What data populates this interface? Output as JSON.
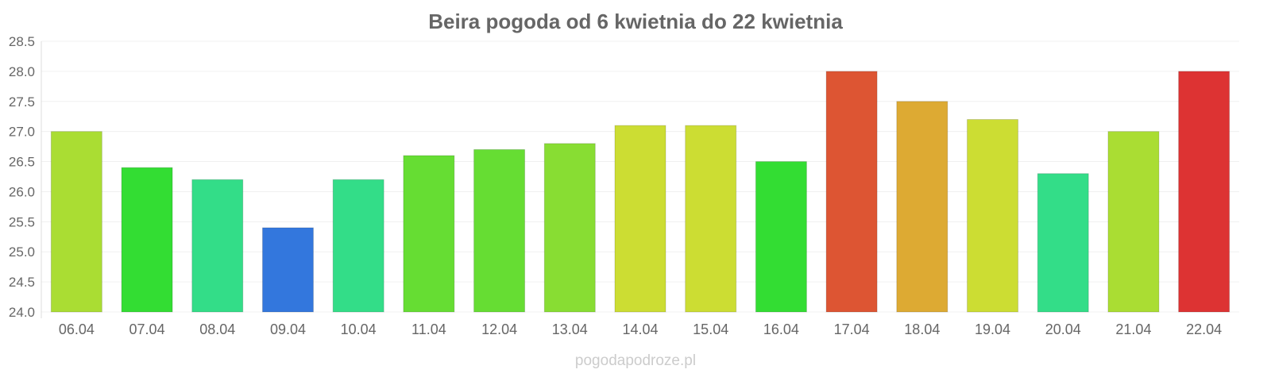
{
  "chart_data": {
    "type": "bar",
    "title": "Beira pogoda od 6 kwietnia do 22 kwietnia",
    "categories": [
      "06.04",
      "07.04",
      "08.04",
      "09.04",
      "10.04",
      "11.04",
      "12.04",
      "13.04",
      "14.04",
      "15.04",
      "16.04",
      "17.04",
      "18.04",
      "19.04",
      "20.04",
      "21.04",
      "22.04"
    ],
    "values": [
      27.0,
      26.4,
      26.2,
      25.4,
      26.2,
      26.6,
      26.7,
      26.8,
      27.1,
      27.1,
      26.5,
      28.0,
      27.5,
      27.2,
      26.3,
      27.0,
      28.0
    ],
    "colors": [
      "#aadd33",
      "#33dd33",
      "#33dd88",
      "#3377dd",
      "#33dd88",
      "#66dd33",
      "#66dd33",
      "#88dd33",
      "#ccdd33",
      "#ccdd33",
      "#33dd33",
      "#dd5533",
      "#ddaa33",
      "#ccdd33",
      "#33dd88",
      "#aadd33",
      "#dd3333"
    ],
    "yticks": [
      "24.0",
      "24.5",
      "25.0",
      "25.5",
      "26.0",
      "26.5",
      "27.0",
      "27.5",
      "28.0",
      "28.5"
    ],
    "ylim": [
      24.0,
      28.5
    ],
    "xlabel": "",
    "ylabel": "",
    "grid": true
  },
  "credit": "pogodapodroze.pl"
}
